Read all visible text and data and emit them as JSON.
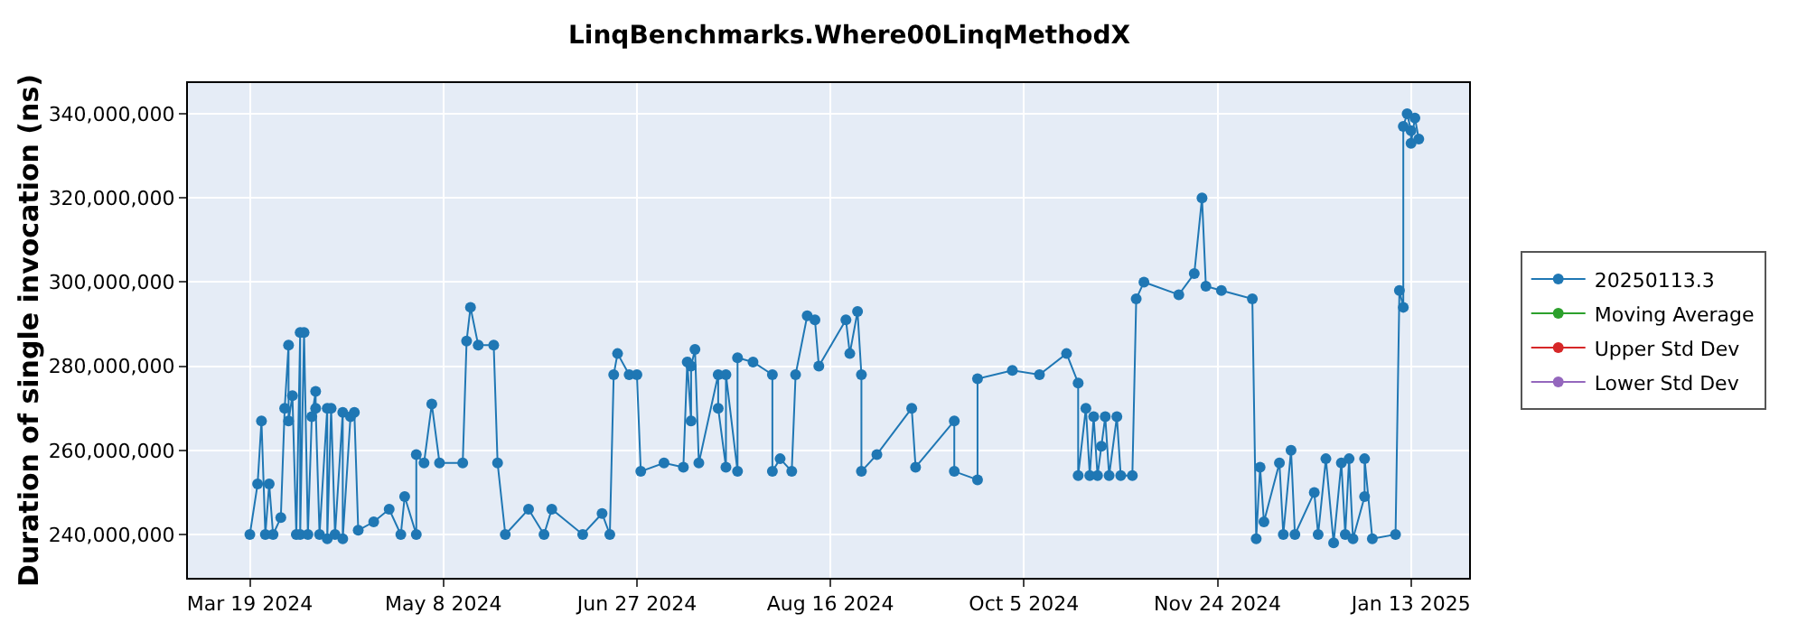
{
  "chart_data": {
    "type": "line",
    "title": "LinqBenchmarks.Where00LinqMethodX",
    "ylabel": "Duration of single invocation (ns)",
    "xlim": [
      "2024-03-03",
      "2025-01-28"
    ],
    "ylim": [
      229700000,
      347300000
    ],
    "xticks": [
      {
        "value": "2024-03-19",
        "label": "Mar 19 2024"
      },
      {
        "value": "2024-05-08",
        "label": "May 8 2024"
      },
      {
        "value": "2024-06-27",
        "label": "Jun 27 2024"
      },
      {
        "value": "2024-08-16",
        "label": "Aug 16 2024"
      },
      {
        "value": "2024-10-05",
        "label": "Oct 5 2024"
      },
      {
        "value": "2024-11-24",
        "label": "Nov 24 2024"
      },
      {
        "value": "2025-01-13",
        "label": "Jan 13 2025"
      }
    ],
    "yticks": [
      {
        "value": 240000000,
        "label": "240,000,000"
      },
      {
        "value": 260000000,
        "label": "260,000,000"
      },
      {
        "value": 280000000,
        "label": "280,000,000"
      },
      {
        "value": 300000000,
        "label": "300,000,000"
      },
      {
        "value": 320000000,
        "label": "320,000,000"
      },
      {
        "value": 340000000,
        "label": "340,000,000"
      }
    ],
    "grid": true,
    "legend": "right",
    "marker": "circle",
    "line_style": "solid",
    "series": [
      {
        "name": "20250113.3",
        "color": "#1f77b4",
        "x": [
          "2024-03-19",
          "2024-03-21",
          "2024-03-22",
          "2024-03-23",
          "2024-03-24",
          "2024-03-25",
          "2024-03-27",
          "2024-03-28",
          "2024-03-29",
          "2024-03-29",
          "2024-03-30",
          "2024-03-31",
          "2024-04-01",
          "2024-04-01",
          "2024-04-02",
          "2024-04-03",
          "2024-04-04",
          "2024-04-05",
          "2024-04-05",
          "2024-04-06",
          "2024-04-08",
          "2024-04-08",
          "2024-04-09",
          "2024-04-10",
          "2024-04-12",
          "2024-04-12",
          "2024-04-14",
          "2024-04-15",
          "2024-04-16",
          "2024-04-20",
          "2024-04-24",
          "2024-04-27",
          "2024-04-28",
          "2024-05-01",
          "2024-05-01",
          "2024-05-03",
          "2024-05-05",
          "2024-05-07",
          "2024-05-13",
          "2024-05-14",
          "2024-05-15",
          "2024-05-17",
          "2024-05-21",
          "2024-05-22",
          "2024-05-24",
          "2024-05-30",
          "2024-06-03",
          "2024-06-05",
          "2024-06-13",
          "2024-06-18",
          "2024-06-20",
          "2024-06-21",
          "2024-06-22",
          "2024-06-25",
          "2024-06-27",
          "2024-06-28",
          "2024-07-04",
          "2024-07-09",
          "2024-07-10",
          "2024-07-11",
          "2024-07-11",
          "2024-07-12",
          "2024-07-13",
          "2024-07-18",
          "2024-07-18",
          "2024-07-20",
          "2024-07-20",
          "2024-07-23",
          "2024-07-23",
          "2024-07-27",
          "2024-08-01",
          "2024-08-01",
          "2024-08-03",
          "2024-08-06",
          "2024-08-07",
          "2024-08-10",
          "2024-08-12",
          "2024-08-13",
          "2024-08-20",
          "2024-08-21",
          "2024-08-23",
          "2024-08-24",
          "2024-08-24",
          "2024-08-28",
          "2024-09-06",
          "2024-09-07",
          "2024-09-17",
          "2024-09-17",
          "2024-09-23",
          "2024-09-23",
          "2024-10-02",
          "2024-10-09",
          "2024-10-16",
          "2024-10-19",
          "2024-10-19",
          "2024-10-21",
          "2024-10-22",
          "2024-10-23",
          "2024-10-24",
          "2024-10-25",
          "2024-10-26",
          "2024-10-27",
          "2024-10-29",
          "2024-10-30",
          "2024-11-02",
          "2024-11-03",
          "2024-11-05",
          "2024-11-14",
          "2024-11-18",
          "2024-11-20",
          "2024-11-21",
          "2024-11-25",
          "2024-12-03",
          "2024-12-04",
          "2024-12-05",
          "2024-12-06",
          "2024-12-10",
          "2024-12-11",
          "2024-12-13",
          "2024-12-14",
          "2024-12-19",
          "2024-12-20",
          "2024-12-22",
          "2024-12-24",
          "2024-12-26",
          "2024-12-27",
          "2024-12-28",
          "2024-12-29",
          "2025-01-01",
          "2025-01-01",
          "2025-01-03",
          "2025-01-09",
          "2025-01-10",
          "2025-01-11",
          "2025-01-11",
          "2025-01-12",
          "2025-01-13",
          "2025-01-13",
          "2025-01-14",
          "2025-01-15"
        ],
        "values": [
          240000000,
          252000000,
          267000000,
          240000000,
          252000000,
          240000000,
          244000000,
          270000000,
          285000000,
          267000000,
          273000000,
          240000000,
          288000000,
          240000000,
          288000000,
          240000000,
          268000000,
          274000000,
          270000000,
          240000000,
          270000000,
          239000000,
          270000000,
          240000000,
          269000000,
          239000000,
          268000000,
          269000000,
          241000000,
          243000000,
          246000000,
          240000000,
          249000000,
          240000000,
          259000000,
          257000000,
          271000000,
          257000000,
          257000000,
          286000000,
          294000000,
          285000000,
          285000000,
          257000000,
          240000000,
          246000000,
          240000000,
          246000000,
          240000000,
          245000000,
          240000000,
          278000000,
          283000000,
          278000000,
          278000000,
          255000000,
          257000000,
          256000000,
          281000000,
          267000000,
          280000000,
          284000000,
          257000000,
          278000000,
          270000000,
          256000000,
          278000000,
          255000000,
          282000000,
          281000000,
          278000000,
          255000000,
          258000000,
          255000000,
          278000000,
          292000000,
          291000000,
          280000000,
          291000000,
          283000000,
          293000000,
          278000000,
          255000000,
          259000000,
          270000000,
          256000000,
          267000000,
          255000000,
          253000000,
          277000000,
          279000000,
          278000000,
          283000000,
          276000000,
          254000000,
          270000000,
          254000000,
          268000000,
          254000000,
          261000000,
          268000000,
          254000000,
          268000000,
          254000000,
          254000000,
          296000000,
          300000000,
          297000000,
          302000000,
          320000000,
          299000000,
          298000000,
          296000000,
          239000000,
          256000000,
          243000000,
          257000000,
          240000000,
          260000000,
          240000000,
          250000000,
          240000000,
          258000000,
          238000000,
          257000000,
          240000000,
          258000000,
          239000000,
          249000000,
          258000000,
          239000000,
          240000000,
          298000000,
          294000000,
          337000000,
          340000000,
          336000000,
          333000000,
          339000000,
          334000000
        ]
      },
      {
        "name": "Moving Average",
        "color": "#2ca02c"
      },
      {
        "name": "Upper Std Dev",
        "color": "#d62728"
      },
      {
        "name": "Lower Std Dev",
        "color": "#9467bd"
      }
    ]
  }
}
